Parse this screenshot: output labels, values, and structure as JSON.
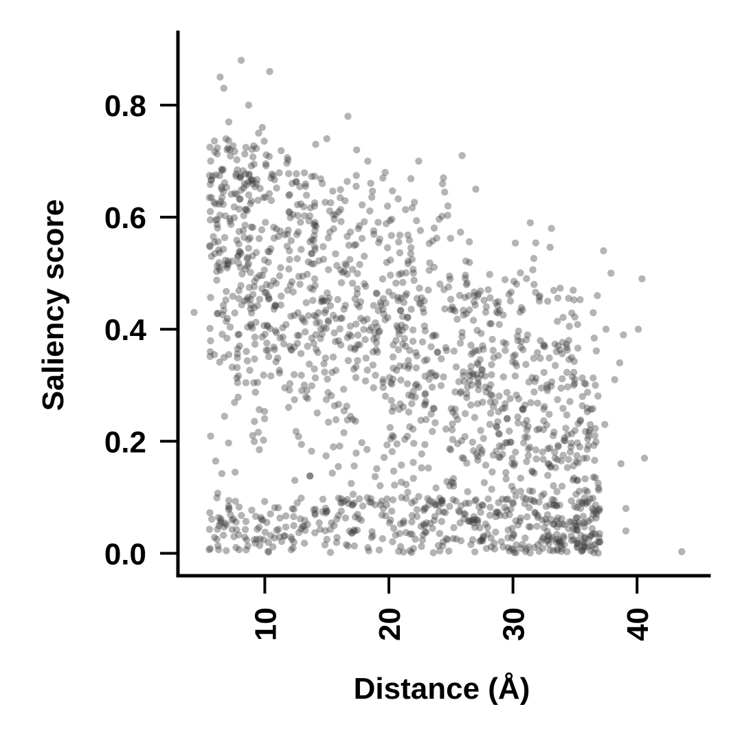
{
  "chart_data": {
    "type": "scatter",
    "xlabel": "Distance (Å)",
    "ylabel": "Saliency score",
    "xlim": [
      3.0,
      45.8
    ],
    "ylim": [
      -0.04,
      0.93
    ],
    "xticks": [
      10,
      20,
      30,
      40
    ],
    "xtick_labels": [
      "10",
      "20",
      "30",
      "40"
    ],
    "yticks": [
      0.0,
      0.2,
      0.4,
      0.6,
      0.8
    ],
    "ytick_labels": [
      "0.0",
      "0.2",
      "0.4",
      "0.6",
      "0.8"
    ],
    "xtick_rotation": -90,
    "grid": false,
    "legend": "none",
    "point_color": "#3a3a3a",
    "series": [
      {
        "x": [
          6.4,
          8.1,
          10.4,
          6.7,
          16.7,
          9.8,
          8.7,
          7.1,
          9.5,
          14.1,
          15.0,
          17.4,
          18.3,
          19.7,
          22.4,
          25.9,
          24.4,
          27.0,
          4.3,
          5.7,
          40.4,
          43.6,
          39.1,
          40.6,
          38.7,
          37.3,
          37.9,
          40.1,
          38.9,
          31.4,
          33.1,
          36.8,
          37.5,
          34.5,
          39.1,
          38.6,
          37.4,
          36.6,
          36.2,
          35.6,
          34.9,
          33.5,
          32.8,
          31.7,
          35.2,
          36.0,
          37.0,
          38.2
        ],
        "y": [
          0.85,
          0.88,
          0.86,
          0.83,
          0.78,
          0.76,
          0.8,
          0.77,
          0.75,
          0.73,
          0.74,
          0.72,
          0.7,
          0.68,
          0.7,
          0.71,
          0.67,
          0.65,
          0.43,
          0.53,
          0.49,
          0.003,
          0.04,
          0.17,
          0.16,
          0.54,
          0.5,
          0.4,
          0.39,
          0.59,
          0.58,
          0.46,
          0.4,
          0.38,
          0.08,
          0.34,
          0.23,
          0.21,
          0.22,
          0.28,
          0.3,
          0.36,
          0.45,
          0.48,
          0.05,
          0.11,
          0.02,
          0.31
        ]
      }
    ],
    "generated_density_points": 1700
  }
}
